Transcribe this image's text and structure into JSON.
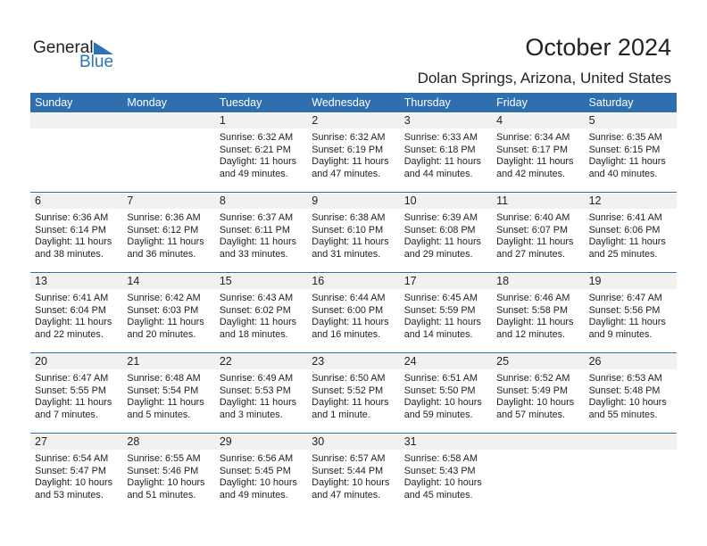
{
  "logo": {
    "text_general": "General",
    "text_blue": "Blue"
  },
  "title": "October 2024",
  "location": "Dolan Springs, Arizona, United States",
  "colors": {
    "header": "#2f6fb0",
    "band": "#f1f1f1",
    "brand": "#2a73b8"
  },
  "weekdays": [
    "Sunday",
    "Monday",
    "Tuesday",
    "Wednesday",
    "Thursday",
    "Friday",
    "Saturday"
  ],
  "weeks": [
    [
      null,
      null,
      {
        "day": "1",
        "sunrise": "Sunrise: 6:32 AM",
        "sunset": "Sunset: 6:21 PM",
        "daylight": "Daylight: 11 hours",
        "minutes": "and 49 minutes."
      },
      {
        "day": "2",
        "sunrise": "Sunrise: 6:32 AM",
        "sunset": "Sunset: 6:19 PM",
        "daylight": "Daylight: 11 hours",
        "minutes": "and 47 minutes."
      },
      {
        "day": "3",
        "sunrise": "Sunrise: 6:33 AM",
        "sunset": "Sunset: 6:18 PM",
        "daylight": "Daylight: 11 hours",
        "minutes": "and 44 minutes."
      },
      {
        "day": "4",
        "sunrise": "Sunrise: 6:34 AM",
        "sunset": "Sunset: 6:17 PM",
        "daylight": "Daylight: 11 hours",
        "minutes": "and 42 minutes."
      },
      {
        "day": "5",
        "sunrise": "Sunrise: 6:35 AM",
        "sunset": "Sunset: 6:15 PM",
        "daylight": "Daylight: 11 hours",
        "minutes": "and 40 minutes."
      }
    ],
    [
      {
        "day": "6",
        "sunrise": "Sunrise: 6:36 AM",
        "sunset": "Sunset: 6:14 PM",
        "daylight": "Daylight: 11 hours",
        "minutes": "and 38 minutes."
      },
      {
        "day": "7",
        "sunrise": "Sunrise: 6:36 AM",
        "sunset": "Sunset: 6:12 PM",
        "daylight": "Daylight: 11 hours",
        "minutes": "and 36 minutes."
      },
      {
        "day": "8",
        "sunrise": "Sunrise: 6:37 AM",
        "sunset": "Sunset: 6:11 PM",
        "daylight": "Daylight: 11 hours",
        "minutes": "and 33 minutes."
      },
      {
        "day": "9",
        "sunrise": "Sunrise: 6:38 AM",
        "sunset": "Sunset: 6:10 PM",
        "daylight": "Daylight: 11 hours",
        "minutes": "and 31 minutes."
      },
      {
        "day": "10",
        "sunrise": "Sunrise: 6:39 AM",
        "sunset": "Sunset: 6:08 PM",
        "daylight": "Daylight: 11 hours",
        "minutes": "and 29 minutes."
      },
      {
        "day": "11",
        "sunrise": "Sunrise: 6:40 AM",
        "sunset": "Sunset: 6:07 PM",
        "daylight": "Daylight: 11 hours",
        "minutes": "and 27 minutes."
      },
      {
        "day": "12",
        "sunrise": "Sunrise: 6:41 AM",
        "sunset": "Sunset: 6:06 PM",
        "daylight": "Daylight: 11 hours",
        "minutes": "and 25 minutes."
      }
    ],
    [
      {
        "day": "13",
        "sunrise": "Sunrise: 6:41 AM",
        "sunset": "Sunset: 6:04 PM",
        "daylight": "Daylight: 11 hours",
        "minutes": "and 22 minutes."
      },
      {
        "day": "14",
        "sunrise": "Sunrise: 6:42 AM",
        "sunset": "Sunset: 6:03 PM",
        "daylight": "Daylight: 11 hours",
        "minutes": "and 20 minutes."
      },
      {
        "day": "15",
        "sunrise": "Sunrise: 6:43 AM",
        "sunset": "Sunset: 6:02 PM",
        "daylight": "Daylight: 11 hours",
        "minutes": "and 18 minutes."
      },
      {
        "day": "16",
        "sunrise": "Sunrise: 6:44 AM",
        "sunset": "Sunset: 6:00 PM",
        "daylight": "Daylight: 11 hours",
        "minutes": "and 16 minutes."
      },
      {
        "day": "17",
        "sunrise": "Sunrise: 6:45 AM",
        "sunset": "Sunset: 5:59 PM",
        "daylight": "Daylight: 11 hours",
        "minutes": "and 14 minutes."
      },
      {
        "day": "18",
        "sunrise": "Sunrise: 6:46 AM",
        "sunset": "Sunset: 5:58 PM",
        "daylight": "Daylight: 11 hours",
        "minutes": "and 12 minutes."
      },
      {
        "day": "19",
        "sunrise": "Sunrise: 6:47 AM",
        "sunset": "Sunset: 5:56 PM",
        "daylight": "Daylight: 11 hours",
        "minutes": "and 9 minutes."
      }
    ],
    [
      {
        "day": "20",
        "sunrise": "Sunrise: 6:47 AM",
        "sunset": "Sunset: 5:55 PM",
        "daylight": "Daylight: 11 hours",
        "minutes": "and 7 minutes."
      },
      {
        "day": "21",
        "sunrise": "Sunrise: 6:48 AM",
        "sunset": "Sunset: 5:54 PM",
        "daylight": "Daylight: 11 hours",
        "minutes": "and 5 minutes."
      },
      {
        "day": "22",
        "sunrise": "Sunrise: 6:49 AM",
        "sunset": "Sunset: 5:53 PM",
        "daylight": "Daylight: 11 hours",
        "minutes": "and 3 minutes."
      },
      {
        "day": "23",
        "sunrise": "Sunrise: 6:50 AM",
        "sunset": "Sunset: 5:52 PM",
        "daylight": "Daylight: 11 hours",
        "minutes": "and 1 minute."
      },
      {
        "day": "24",
        "sunrise": "Sunrise: 6:51 AM",
        "sunset": "Sunset: 5:50 PM",
        "daylight": "Daylight: 10 hours",
        "minutes": "and 59 minutes."
      },
      {
        "day": "25",
        "sunrise": "Sunrise: 6:52 AM",
        "sunset": "Sunset: 5:49 PM",
        "daylight": "Daylight: 10 hours",
        "minutes": "and 57 minutes."
      },
      {
        "day": "26",
        "sunrise": "Sunrise: 6:53 AM",
        "sunset": "Sunset: 5:48 PM",
        "daylight": "Daylight: 10 hours",
        "minutes": "and 55 minutes."
      }
    ],
    [
      {
        "day": "27",
        "sunrise": "Sunrise: 6:54 AM",
        "sunset": "Sunset: 5:47 PM",
        "daylight": "Daylight: 10 hours",
        "minutes": "and 53 minutes."
      },
      {
        "day": "28",
        "sunrise": "Sunrise: 6:55 AM",
        "sunset": "Sunset: 5:46 PM",
        "daylight": "Daylight: 10 hours",
        "minutes": "and 51 minutes."
      },
      {
        "day": "29",
        "sunrise": "Sunrise: 6:56 AM",
        "sunset": "Sunset: 5:45 PM",
        "daylight": "Daylight: 10 hours",
        "minutes": "and 49 minutes."
      },
      {
        "day": "30",
        "sunrise": "Sunrise: 6:57 AM",
        "sunset": "Sunset: 5:44 PM",
        "daylight": "Daylight: 10 hours",
        "minutes": "and 47 minutes."
      },
      {
        "day": "31",
        "sunrise": "Sunrise: 6:58 AM",
        "sunset": "Sunset: 5:43 PM",
        "daylight": "Daylight: 10 hours",
        "minutes": "and 45 minutes."
      },
      null,
      null
    ]
  ]
}
